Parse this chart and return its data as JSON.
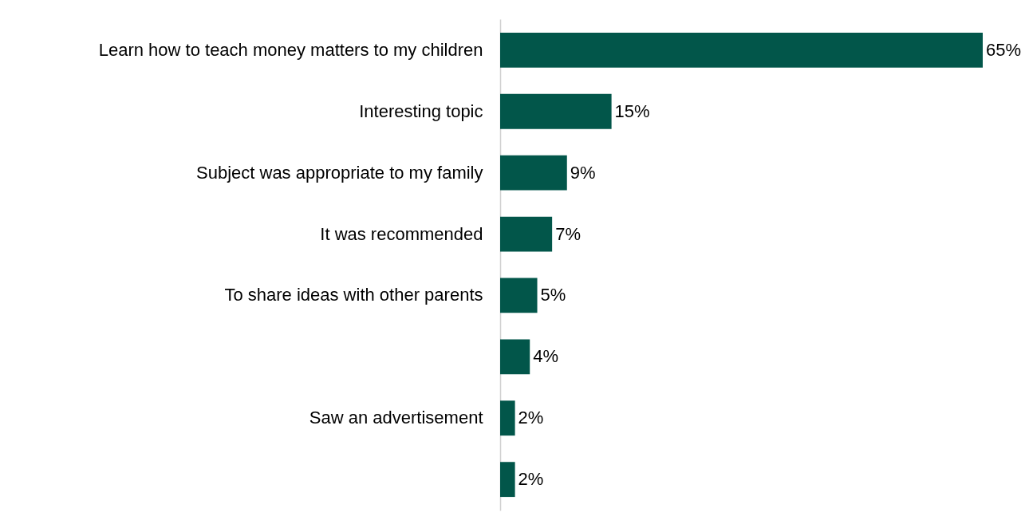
{
  "chart_data": {
    "type": "bar",
    "orientation": "horizontal",
    "categories": [
      "Learn how to teach money matters to my children",
      "Interesting topic",
      "Subject was appropriate to my family",
      "It was recommended",
      "To share ideas with other parents",
      null,
      "Saw an advertisement",
      null
    ],
    "values": [
      65,
      15,
      9,
      7,
      5,
      4,
      2,
      2
    ],
    "value_labels": [
      "65%",
      "15%",
      "9%",
      "7%",
      "5%",
      "4%",
      "2%",
      "2%"
    ],
    "color": "#02564a"
  }
}
